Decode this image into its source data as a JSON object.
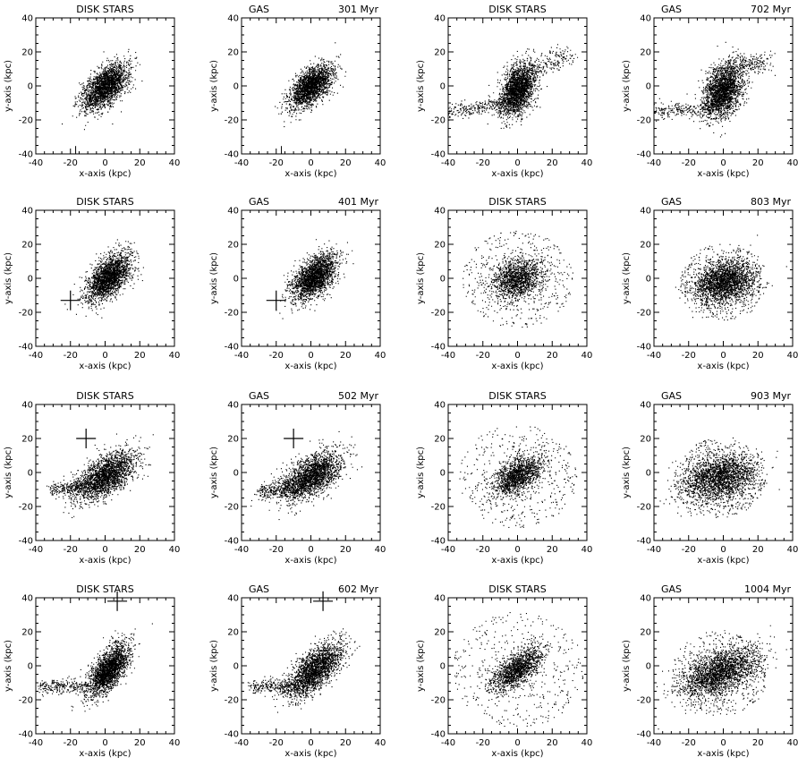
{
  "figure": {
    "axis_ticks": [
      "-40",
      "-20",
      "0",
      "20",
      "40"
    ],
    "xlabel": "x-axis (kpc)",
    "ylabel": "y-axis (kpc)"
  },
  "chart_data": [
    {
      "type": "scatter",
      "title_left": "DISK STARS",
      "title_right": "",
      "xlabel": "x-axis (kpc)",
      "ylabel": "y-axis (kpc)",
      "xlim": [
        -40,
        40
      ],
      "ylim": [
        -40,
        40
      ],
      "xticks": [
        -40,
        -20,
        0,
        20,
        40
      ],
      "yticks": [
        -40,
        -20,
        0,
        20,
        40
      ],
      "cloud": {
        "center": [
          0,
          0
        ],
        "semi_axes": [
          15,
          8
        ],
        "angle_deg": 45,
        "density": "dense"
      },
      "marker": {
        "type": "tick",
        "x": -17,
        "y": -38
      }
    },
    {
      "type": "scatter",
      "title_left": "GAS",
      "title_right": "301 Myr",
      "xlabel": "x-axis (kpc)",
      "ylabel": "y-axis (kpc)",
      "xlim": [
        -40,
        40
      ],
      "ylim": [
        -40,
        40
      ],
      "xticks": [
        -40,
        -20,
        0,
        20,
        40
      ],
      "yticks": [
        -40,
        -20,
        0,
        20,
        40
      ],
      "cloud": {
        "center": [
          0,
          0
        ],
        "semi_axes": [
          14,
          7
        ],
        "angle_deg": 45,
        "density": "dense"
      },
      "marker": {
        "type": "tick",
        "x": -17,
        "y": -38
      }
    },
    {
      "type": "scatter",
      "title_left": "DISK STARS",
      "title_right": "",
      "xlabel": "x-axis (kpc)",
      "ylabel": "y-axis (kpc)",
      "xlim": [
        -40,
        40
      ],
      "ylim": [
        -40,
        40
      ],
      "xticks": [
        -40,
        -20,
        0,
        20,
        40
      ],
      "yticks": [
        -40,
        -20,
        0,
        20,
        40
      ],
      "cloud": {
        "center": [
          0,
          -2
        ],
        "semi_axes": [
          14,
          8
        ],
        "angle_deg": 70,
        "density": "dense"
      },
      "tail": {
        "from": [
          -40,
          -15
        ],
        "to": [
          -5,
          -10
        ]
      },
      "plume": {
        "from": [
          5,
          10
        ],
        "to": [
          30,
          18
        ]
      }
    },
    {
      "type": "scatter",
      "title_left": "GAS",
      "title_right": "702 Myr",
      "xlabel": "x-axis (kpc)",
      "ylabel": "y-axis (kpc)",
      "xlim": [
        -40,
        40
      ],
      "ylim": [
        -40,
        40
      ],
      "xticks": [
        -40,
        -20,
        0,
        20,
        40
      ],
      "yticks": [
        -40,
        -20,
        0,
        20,
        40
      ],
      "cloud": {
        "center": [
          0,
          -2
        ],
        "semi_axes": [
          15,
          9
        ],
        "angle_deg": 70,
        "density": "dense"
      },
      "tail": {
        "from": [
          -40,
          -15
        ],
        "to": [
          -5,
          -13
        ]
      },
      "plume": {
        "from": [
          5,
          12
        ],
        "to": [
          25,
          14
        ]
      }
    },
    {
      "type": "scatter",
      "title_left": "DISK STARS",
      "title_right": "",
      "xlabel": "x-axis (kpc)",
      "ylabel": "y-axis (kpc)",
      "xlim": [
        -40,
        40
      ],
      "ylim": [
        -40,
        40
      ],
      "xticks": [
        -40,
        -20,
        0,
        20,
        40
      ],
      "yticks": [
        -40,
        -20,
        0,
        20,
        40
      ],
      "cloud": {
        "center": [
          2,
          1
        ],
        "semi_axes": [
          15,
          8
        ],
        "angle_deg": 50,
        "density": "dense"
      },
      "marker": {
        "type": "cross",
        "x": -20,
        "y": -13
      }
    },
    {
      "type": "scatter",
      "title_left": "GAS",
      "title_right": "401 Myr",
      "xlabel": "x-axis (kpc)",
      "ylabel": "y-axis (kpc)",
      "xlim": [
        -40,
        40
      ],
      "ylim": [
        -40,
        40
      ],
      "xticks": [
        -40,
        -20,
        0,
        20,
        40
      ],
      "yticks": [
        -40,
        -20,
        0,
        20,
        40
      ],
      "cloud": {
        "center": [
          2,
          1
        ],
        "semi_axes": [
          15,
          8
        ],
        "angle_deg": 50,
        "density": "dense"
      },
      "marker": {
        "type": "cross",
        "x": -20,
        "y": -13
      }
    },
    {
      "type": "scatter",
      "title_left": "DISK STARS",
      "title_right": "",
      "xlabel": "x-axis (kpc)",
      "ylabel": "y-axis (kpc)",
      "xlim": [
        -40,
        40
      ],
      "ylim": [
        -40,
        40
      ],
      "xticks": [
        -40,
        -20,
        0,
        20,
        40
      ],
      "yticks": [
        -40,
        -20,
        0,
        20,
        40
      ],
      "cloud": {
        "center": [
          0,
          0
        ],
        "semi_axes": [
          14,
          10
        ],
        "angle_deg": 25,
        "density": "medium"
      },
      "halo": {
        "radius": 32
      }
    },
    {
      "type": "scatter",
      "title_left": "GAS",
      "title_right": "803 Myr",
      "xlabel": "x-axis (kpc)",
      "ylabel": "y-axis (kpc)",
      "xlim": [
        -40,
        40
      ],
      "ylim": [
        -40,
        40
      ],
      "xticks": [
        -40,
        -20,
        0,
        20,
        40
      ],
      "yticks": [
        -40,
        -20,
        0,
        20,
        40
      ],
      "cloud": {
        "center": [
          0,
          -2
        ],
        "semi_axes": [
          16,
          11
        ],
        "angle_deg": 20,
        "density": "dense"
      },
      "halo": {
        "radius": 25
      }
    },
    {
      "type": "scatter",
      "title_left": "DISK STARS",
      "title_right": "",
      "xlabel": "x-axis (kpc)",
      "ylabel": "y-axis (kpc)",
      "xlim": [
        -40,
        40
      ],
      "ylim": [
        -40,
        40
      ],
      "xticks": [
        -40,
        -20,
        0,
        20,
        40
      ],
      "yticks": [
        -40,
        -20,
        0,
        20,
        40
      ],
      "cloud": {
        "center": [
          0,
          -2
        ],
        "semi_axes": [
          18,
          9
        ],
        "angle_deg": 35,
        "density": "dense"
      },
      "tail": {
        "from": [
          -32,
          -10
        ],
        "to": [
          -10,
          -8
        ]
      },
      "marker": {
        "type": "cross",
        "x": -11,
        "y": 20
      }
    },
    {
      "type": "scatter",
      "title_left": "GAS",
      "title_right": "502 Myr",
      "xlabel": "x-axis (kpc)",
      "ylabel": "y-axis (kpc)",
      "xlim": [
        -40,
        40
      ],
      "ylim": [
        -40,
        40
      ],
      "xticks": [
        -40,
        -20,
        0,
        20,
        40
      ],
      "yticks": [
        -40,
        -20,
        0,
        20,
        40
      ],
      "cloud": {
        "center": [
          0,
          -2
        ],
        "semi_axes": [
          18,
          9
        ],
        "angle_deg": 35,
        "density": "dense"
      },
      "tail": {
        "from": [
          -30,
          -12
        ],
        "to": [
          -10,
          -8
        ]
      },
      "marker": {
        "type": "cross",
        "x": -10,
        "y": 20
      }
    },
    {
      "type": "scatter",
      "title_left": "DISK STARS",
      "title_right": "",
      "xlabel": "x-axis (kpc)",
      "ylabel": "y-axis (kpc)",
      "xlim": [
        -40,
        40
      ],
      "ylim": [
        -40,
        40
      ],
      "xticks": [
        -40,
        -20,
        0,
        20,
        40
      ],
      "yticks": [
        -40,
        -20,
        0,
        20,
        40
      ],
      "cloud": {
        "center": [
          0,
          -2
        ],
        "semi_axes": [
          14,
          8
        ],
        "angle_deg": 35,
        "density": "medium"
      },
      "halo": {
        "radius": 34
      }
    },
    {
      "type": "scatter",
      "title_left": "GAS",
      "title_right": "903 Myr",
      "xlabel": "x-axis (kpc)",
      "ylabel": "y-axis (kpc)",
      "xlim": [
        -40,
        40
      ],
      "ylim": [
        -40,
        40
      ],
      "xticks": [
        -40,
        -20,
        0,
        20,
        40
      ],
      "yticks": [
        -40,
        -20,
        0,
        20,
        40
      ],
      "cloud": {
        "center": [
          -2,
          -3
        ],
        "semi_axes": [
          20,
          12
        ],
        "angle_deg": 15,
        "density": "dense"
      },
      "halo": {
        "radius": 26
      }
    },
    {
      "type": "scatter",
      "title_left": "DISK STARS",
      "title_right": "",
      "xlabel": "x-axis (kpc)",
      "ylabel": "y-axis (kpc)",
      "xlim": [
        -40,
        40
      ],
      "ylim": [
        -40,
        40
      ],
      "xticks": [
        -40,
        -20,
        0,
        20,
        40
      ],
      "yticks": [
        -40,
        -20,
        0,
        20,
        40
      ],
      "cloud": {
        "center": [
          2,
          -2
        ],
        "semi_axes": [
          16,
          7
        ],
        "angle_deg": 55,
        "density": "dense"
      },
      "tail": {
        "from": [
          -38,
          -12
        ],
        "to": [
          -10,
          -12
        ]
      },
      "marker": {
        "type": "cross",
        "x": 7,
        "y": 38
      }
    },
    {
      "type": "scatter",
      "title_left": "GAS",
      "title_right": "602 Myr",
      "xlabel": "x-axis (kpc)",
      "ylabel": "y-axis (kpc)",
      "xlim": [
        -40,
        40
      ],
      "ylim": [
        -40,
        40
      ],
      "xticks": [
        -40,
        -20,
        0,
        20,
        40
      ],
      "yticks": [
        -40,
        -20,
        0,
        20,
        40
      ],
      "cloud": {
        "center": [
          2,
          -2
        ],
        "semi_axes": [
          18,
          8
        ],
        "angle_deg": 45,
        "density": "dense"
      },
      "tail": {
        "from": [
          -35,
          -12
        ],
        "to": [
          -10,
          -12
        ]
      },
      "marker": {
        "type": "cross",
        "x": 7,
        "y": 38
      }
    },
    {
      "type": "scatter",
      "title_left": "DISK STARS",
      "title_right": "",
      "xlabel": "x-axis (kpc)",
      "ylabel": "y-axis (kpc)",
      "xlim": [
        -40,
        40
      ],
      "ylim": [
        -40,
        40
      ],
      "xticks": [
        -40,
        -20,
        0,
        20,
        40
      ],
      "yticks": [
        -40,
        -20,
        0,
        20,
        40
      ],
      "cloud": {
        "center": [
          0,
          -2
        ],
        "semi_axes": [
          16,
          7
        ],
        "angle_deg": 40,
        "density": "medium"
      },
      "halo": {
        "radius": 38
      }
    },
    {
      "type": "scatter",
      "title_left": "GAS",
      "title_right": "1004 Myr",
      "xlabel": "x-axis (kpc)",
      "ylabel": "y-axis (kpc)",
      "xlim": [
        -40,
        40
      ],
      "ylim": [
        -40,
        40
      ],
      "xticks": [
        -40,
        -20,
        0,
        20,
        40
      ],
      "yticks": [
        -40,
        -20,
        0,
        20,
        40
      ],
      "cloud": {
        "center": [
          -2,
          -4
        ],
        "semi_axes": [
          22,
          11
        ],
        "angle_deg": 25,
        "density": "dense"
      },
      "halo": {
        "radius": 28
      }
    }
  ]
}
